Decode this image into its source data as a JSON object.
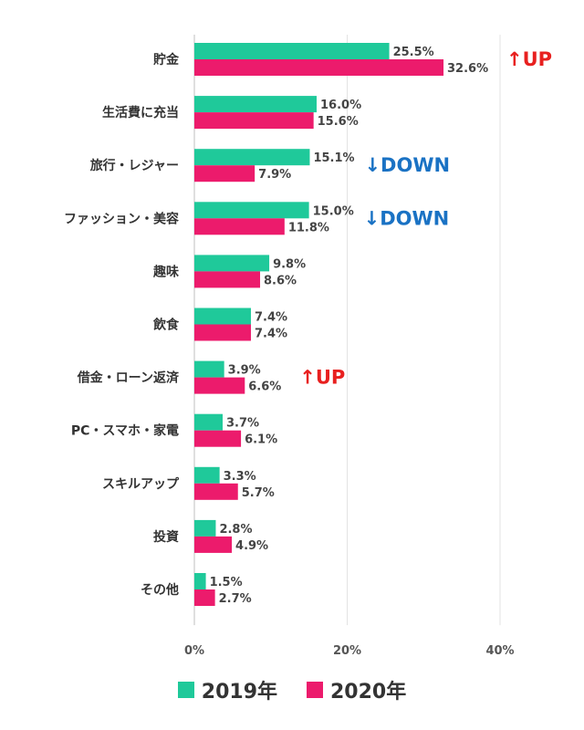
{
  "chart_data": {
    "type": "bar",
    "orientation": "horizontal",
    "categories": [
      "貯金",
      "生活費に充当",
      "旅行・レジャー",
      "ファッション・美容",
      "趣味",
      "飲食",
      "借金・ローン返済",
      "PC・スマホ・家電",
      "スキルアップ",
      "投資",
      "その他"
    ],
    "series": [
      {
        "name": "2019年",
        "color": "#1fc99a",
        "values": [
          25.5,
          16.0,
          15.1,
          15.0,
          9.8,
          7.4,
          3.9,
          3.7,
          3.3,
          2.8,
          1.5
        ],
        "labels": [
          "25.5%",
          "16.0%",
          "15.1%",
          "15.0%",
          "9.8%",
          "7.4%",
          "3.9%",
          "3.7%",
          "3.3%",
          "2.8%",
          "1.5%"
        ]
      },
      {
        "name": "2020年",
        "color": "#ec1b6c",
        "values": [
          32.6,
          15.6,
          7.9,
          11.8,
          8.6,
          7.4,
          6.6,
          6.1,
          5.7,
          4.9,
          2.7
        ],
        "labels": [
          "32.6%",
          "15.6%",
          "7.9%",
          "11.8%",
          "8.6%",
          "7.4%",
          "6.6%",
          "6.1%",
          "5.7%",
          "4.9%",
          "2.7%"
        ]
      }
    ],
    "xlim": [
      0,
      40
    ],
    "xticks": [
      0,
      20,
      40
    ],
    "xtick_labels": [
      "0%",
      "20%",
      "40%"
    ],
    "grid": true,
    "legend_position": "bottom",
    "annotations": [
      {
        "category_index": 0,
        "text": "↑UP",
        "color": "#e8201f"
      },
      {
        "category_index": 2,
        "text": "↓DOWN",
        "color": "#1a72c4"
      },
      {
        "category_index": 3,
        "text": "↓DOWN",
        "color": "#1a72c4"
      },
      {
        "category_index": 6,
        "text": "↑UP",
        "color": "#e8201f"
      }
    ]
  }
}
